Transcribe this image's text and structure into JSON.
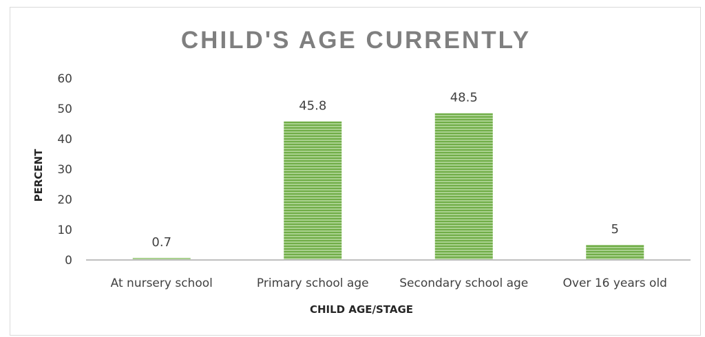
{
  "chart_data": {
    "type": "bar",
    "title": "CHILD'S AGE CURRENTLY",
    "xlabel": "CHILD AGE/STAGE",
    "ylabel": "PERCENT",
    "categories": [
      "At nursery school",
      "Primary school age",
      "Secondary school age",
      "Over 16 years old"
    ],
    "values": [
      0.7,
      45.8,
      48.5,
      5
    ],
    "data_labels": [
      "0.7",
      "45.8",
      "48.5",
      "5"
    ],
    "ylim": [
      0,
      60
    ],
    "yticks": [
      0,
      10,
      20,
      30,
      40,
      50,
      60
    ],
    "grid": false,
    "legend": "none",
    "bar_color": "#70ad47",
    "bar_stripe_color": "#a9d18e",
    "bar_pattern": "horizontal-stripes"
  }
}
